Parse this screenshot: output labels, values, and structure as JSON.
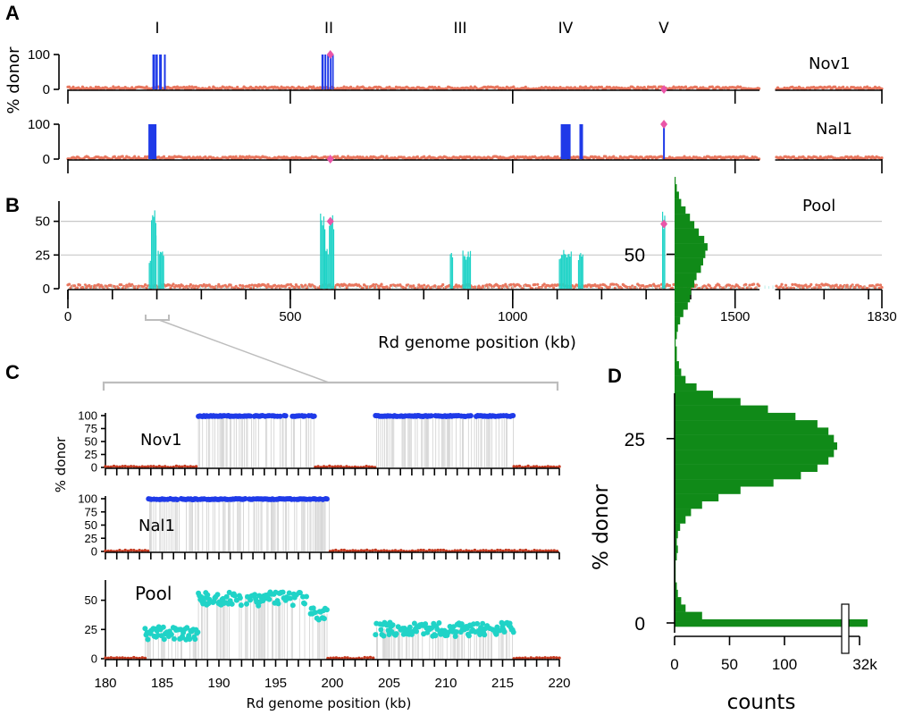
{
  "colors": {
    "strain_donor": "#1f3ae8",
    "pool_donor": "#20d3c7",
    "background": "#e8765e",
    "marker": "#ea55a8",
    "histogram": "#108a18",
    "gridline": "#c8c8c8",
    "zoom_bracket": "#bdbdbd"
  },
  "panels": {
    "A": "A",
    "B": "B",
    "C": "C",
    "D": "D"
  },
  "regions": [
    "I",
    "II",
    "III",
    "IV",
    "V"
  ],
  "chart_data": [
    {
      "panel": "A",
      "type": "bar",
      "ylabel": "% donor",
      "yticks": [
        "0",
        "100"
      ],
      "ylim": [
        0,
        100
      ],
      "xlim": [
        0,
        1830
      ],
      "tracks": [
        {
          "name": "Nov1",
          "donor_segments": [
            [
              190,
              196
            ],
            [
              197,
              202
            ],
            [
              205,
              211
            ],
            [
              216,
              220
            ],
            [
              570,
              575
            ],
            [
              577,
              581
            ],
            [
              583,
              587
            ],
            [
              589,
              592
            ],
            [
              594,
              597
            ]
          ],
          "donor_value": 100,
          "markers": [
            {
              "x": 590,
              "y": 100
            },
            {
              "x": 1340,
              "y": 0
            }
          ]
        },
        {
          "name": "Nal1",
          "donor_segments": [
            [
              181,
              199
            ],
            [
              1108,
              1130
            ],
            [
              1150,
              1158
            ],
            [
              1338,
              1342
            ]
          ],
          "donor_value": 100,
          "markers": [
            {
              "x": 590,
              "y": 0
            },
            {
              "x": 1340,
              "y": 100
            }
          ]
        }
      ],
      "background_gaps_kb": [
        [
          1555,
          1590
        ]
      ]
    },
    {
      "panel": "B",
      "type": "bar",
      "name": "Pool",
      "yticks": [
        "0",
        "25",
        "50"
      ],
      "ylim": [
        0,
        65
      ],
      "gridlines_at": [
        25,
        50
      ],
      "xlim": [
        0,
        1830
      ],
      "xlabel": "Rd genome position (kb)",
      "xticks": [
        "0",
        "500",
        "1000",
        "1500",
        "1830"
      ],
      "xtick_values": [
        0,
        500,
        1000,
        1500,
        1830
      ],
      "minor_tick_step_kb": 100,
      "donor_segments": [
        {
          "x": [
            183,
            188
          ],
          "y": 22
        },
        {
          "x": [
            188,
            198
          ],
          "y": 51
        },
        {
          "x": [
            198,
            200
          ],
          "y": 46
        },
        {
          "x": [
            203,
            216
          ],
          "y": 25
        },
        {
          "x": [
            568,
            578
          ],
          "y": 50
        },
        {
          "x": [
            578,
            586
          ],
          "y": 26
        },
        {
          "x": [
            588,
            598
          ],
          "y": 50
        },
        {
          "x": [
            860,
            866
          ],
          "y": 25
        },
        {
          "x": [
            888,
            905
          ],
          "y": 25
        },
        {
          "x": [
            1105,
            1132
          ],
          "y": 25
        },
        {
          "x": [
            1148,
            1158
          ],
          "y": 24
        },
        {
          "x": [
            1337,
            1343
          ],
          "y": 50
        }
      ],
      "markers": [
        {
          "x": 590,
          "y": 50
        },
        {
          "x": 1340,
          "y": 48
        }
      ]
    },
    {
      "panel": "C",
      "type": "scatter",
      "ylabel": "% donor",
      "xlabel": "Rd genome position (kb)",
      "xlim": [
        180,
        220
      ],
      "xticks": [
        "180",
        "185",
        "190",
        "195",
        "200",
        "205",
        "210",
        "215",
        "220"
      ],
      "xtick_values": [
        180,
        185,
        190,
        195,
        200,
        205,
        210,
        215,
        220
      ],
      "tracks": [
        {
          "name": "Nov1",
          "yticks": [
            "0",
            "25",
            "50",
            "75",
            "100"
          ],
          "ylim": [
            0,
            100
          ],
          "donor_ranges": [
            [
              188.2,
              198.5
            ],
            [
              203.8,
              216.0
            ]
          ],
          "donor_value": 100,
          "background_ranges": [
            [
              180,
              188.2
            ],
            [
              198.5,
              203.8
            ],
            [
              216.0,
              220
            ]
          ]
        },
        {
          "name": "Nal1",
          "yticks": [
            "0",
            "25",
            "50",
            "75",
            "100"
          ],
          "ylim": [
            0,
            100
          ],
          "donor_ranges": [
            [
              183.8,
              199.8
            ]
          ],
          "donor_value": 100,
          "background_ranges": [
            [
              180,
              183.8
            ],
            [
              199.8,
              220
            ]
          ]
        },
        {
          "name": "Pool",
          "yticks": [
            "0",
            "25",
            "50"
          ],
          "ylim": [
            0,
            65
          ],
          "segments": [
            {
              "x": [
                183.5,
                188.2
              ],
              "y": 22
            },
            {
              "x": [
                188.2,
                198.0
              ],
              "y": 51
            },
            {
              "x": [
                198.0,
                199.6
              ],
              "y": 38
            },
            {
              "x": [
                203.8,
                216.0
              ],
              "y": 25
            }
          ],
          "background_ranges": [
            [
              180,
              183.5
            ],
            [
              199.6,
              203.8
            ],
            [
              216.0,
              220
            ]
          ]
        }
      ]
    },
    {
      "panel": "D",
      "type": "bar",
      "orientation": "horizontal",
      "ylabel": "% donor",
      "xlabel": "counts",
      "yticks": [
        "0",
        "25",
        "50"
      ],
      "ylim": [
        0,
        62
      ],
      "xticks": [
        "0",
        "50",
        "100",
        "32k"
      ],
      "xtick_values": [
        0,
        50,
        100,
        32000
      ],
      "axis_break_after": 148,
      "bins_value_at": [
        0,
        1,
        2,
        3,
        4,
        5,
        6,
        7,
        8,
        9,
        10,
        11,
        12,
        13,
        14,
        15,
        16,
        17,
        18,
        19,
        20,
        21,
        22,
        23,
        24,
        25,
        26,
        27,
        28,
        29,
        30,
        31,
        32,
        33,
        34,
        35,
        36,
        37,
        38,
        39,
        40,
        41,
        42,
        43,
        44,
        45,
        46,
        47,
        48,
        49,
        50,
        51,
        52,
        53,
        54,
        55,
        56,
        57,
        58,
        59,
        60
      ],
      "counts": [
        32000,
        25,
        10,
        6,
        3,
        2,
        1,
        1,
        1,
        2,
        3,
        2,
        3,
        5,
        10,
        15,
        25,
        40,
        60,
        90,
        115,
        130,
        140,
        145,
        148,
        145,
        140,
        130,
        110,
        85,
        60,
        35,
        20,
        10,
        6,
        4,
        2,
        2,
        1,
        2,
        3,
        5,
        8,
        12,
        14,
        15,
        18,
        20,
        24,
        26,
        28,
        30,
        27,
        22,
        18,
        14,
        10,
        6,
        4,
        2,
        1
      ]
    }
  ]
}
